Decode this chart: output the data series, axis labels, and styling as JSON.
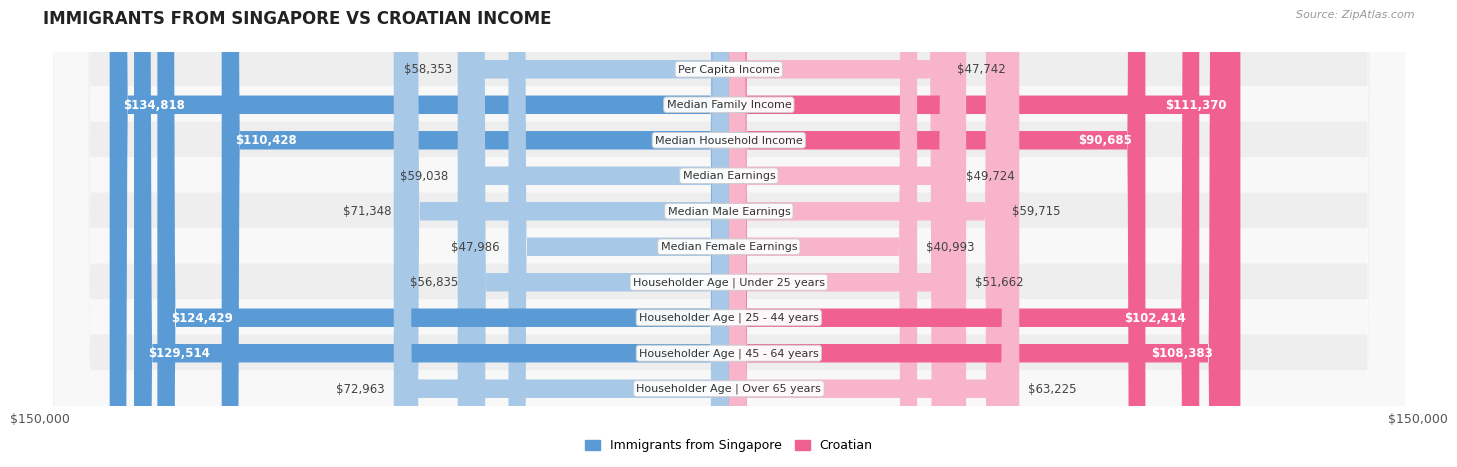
{
  "title": "IMMIGRANTS FROM SINGAPORE VS CROATIAN INCOME",
  "source": "Source: ZipAtlas.com",
  "categories": [
    "Per Capita Income",
    "Median Family Income",
    "Median Household Income",
    "Median Earnings",
    "Median Male Earnings",
    "Median Female Earnings",
    "Householder Age | Under 25 years",
    "Householder Age | 25 - 44 years",
    "Householder Age | 45 - 64 years",
    "Householder Age | Over 65 years"
  ],
  "singapore_values": [
    58353,
    134818,
    110428,
    59038,
    71348,
    47986,
    56835,
    124429,
    129514,
    72963
  ],
  "croatian_values": [
    47742,
    111370,
    90685,
    49724,
    59715,
    40993,
    51662,
    102414,
    108383,
    63225
  ],
  "singapore_labels": [
    "$58,353",
    "$134,818",
    "$110,428",
    "$59,038",
    "$71,348",
    "$47,986",
    "$56,835",
    "$124,429",
    "$129,514",
    "$72,963"
  ],
  "croatian_labels": [
    "$47,742",
    "$111,370",
    "$90,685",
    "$49,724",
    "$59,715",
    "$40,993",
    "$51,662",
    "$102,414",
    "$108,383",
    "$63,225"
  ],
  "singapore_color_light": "#a8c8e8",
  "singapore_color_dark": "#5b9bd5",
  "croatian_color_light": "#f8b4ca",
  "croatian_color_dark": "#f06090",
  "large_threshold": 80000,
  "max_value": 150000,
  "background_color": "#ffffff",
  "row_bg_odd": "#eeeeee",
  "row_bg_even": "#f8f8f8",
  "legend_singapore": "Immigrants from Singapore",
  "legend_croatian": "Croatian",
  "title_fontsize": 12,
  "label_fontsize": 8.5,
  "category_fontsize": 8.0,
  "axis_label": "$150,000"
}
